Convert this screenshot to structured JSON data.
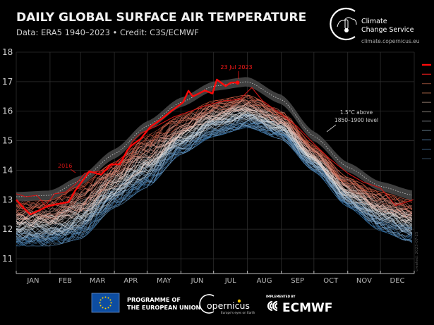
{
  "header": {
    "title": "DAILY GLOBAL SURFACE AIR TEMPERATURE",
    "subtitle": "Data: ERA5 1940–2023 • Credit: C3S/ECMWF"
  },
  "brand": {
    "line1": "Climate",
    "line2": "Change Service",
    "url": "climate.copernicus.eu"
  },
  "footer": {
    "eu_line1": "PROGRAMME OF",
    "eu_line2": "THE EUROPEAN UNION",
    "copernicus": "opernicus",
    "copernicus_tagline": "Europe's eyes on Earth",
    "implemented_by": "IMPLEMENTED BY",
    "ecmwf": "ECMWF"
  },
  "watermark": "created: 2023-07-25",
  "chart_data": {
    "type": "line",
    "title": "DAILY GLOBAL SURFACE AIR TEMPERATURE",
    "xlabel": "",
    "ylabel": "",
    "ylim": [
      11,
      18
    ],
    "yticks": [
      11,
      12,
      13,
      14,
      15,
      16,
      17,
      18
    ],
    "xticks": [
      "JAN",
      "FEB",
      "MAR",
      "APR",
      "MAY",
      "JUN",
      "JUL",
      "AUG",
      "SEP",
      "OCT",
      "NOV",
      "DEC"
    ],
    "grid": true,
    "legend": "right",
    "years_range": [
      1940,
      2023
    ],
    "colors": {
      "cold": "#2e6fa8",
      "neutral": "#e8e4e0",
      "warm": "#d9553a",
      "y2023": "#ff0a0a",
      "y2016": "#d01414",
      "band": "#4a4a4a",
      "threshold": "#bbbbbb"
    },
    "ensemble_envelope_1940_2022": {
      "dates": [
        "01-01",
        "02-01",
        "03-01",
        "04-01",
        "05-01",
        "06-01",
        "07-01",
        "08-01",
        "09-01",
        "10-01",
        "11-01",
        "12-01",
        "12-31"
      ],
      "min": [
        11.5,
        11.5,
        11.75,
        12.8,
        13.5,
        14.6,
        15.2,
        15.5,
        15.1,
        14.0,
        12.8,
        12.0,
        11.6
      ],
      "max": [
        12.9,
        12.9,
        13.4,
        14.2,
        15.1,
        15.8,
        16.3,
        16.5,
        16.0,
        14.8,
        13.7,
        13.2,
        12.9
      ]
    },
    "threshold_1_5": {
      "label_line1": "1.5°C above",
      "label_line2": "1850–1900 level",
      "dates": [
        "01-01",
        "02-01",
        "03-01",
        "04-01",
        "05-01",
        "06-01",
        "07-01",
        "08-01",
        "09-01",
        "10-01",
        "11-01",
        "12-01",
        "12-31"
      ],
      "values": [
        13.1,
        13.15,
        13.65,
        14.55,
        15.5,
        16.3,
        16.85,
        17.0,
        16.4,
        15.15,
        14.1,
        13.45,
        13.15
      ]
    },
    "series": [
      {
        "name": "2016",
        "dates": [
          "01-01",
          "01-10",
          "01-20",
          "01-28",
          "02-05",
          "02-15",
          "02-25",
          "03-05",
          "03-15",
          "03-25",
          "04-01",
          "04-10",
          "04-18",
          "04-25",
          "05-10",
          "05-25",
          "06-10",
          "06-25",
          "07-10",
          "07-25",
          "08-05",
          "08-15",
          "09-01",
          "09-15",
          "10-01",
          "10-15",
          "11-01",
          "11-15",
          "12-01",
          "12-15",
          "12-31"
        ],
        "values": [
          13.2,
          13.1,
          13.15,
          12.8,
          13.2,
          13.25,
          13.55,
          13.9,
          13.95,
          14.0,
          14.2,
          14.5,
          15.0,
          15.25,
          15.5,
          15.8,
          16.0,
          16.2,
          16.35,
          16.4,
          16.8,
          16.35,
          15.9,
          15.5,
          14.9,
          14.4,
          13.9,
          13.6,
          13.4,
          12.8,
          13.0
        ]
      },
      {
        "name": "2023",
        "dates": [
          "01-01",
          "01-07",
          "01-14",
          "01-21",
          "01-29",
          "02-07",
          "02-18",
          "02-24",
          "03-02",
          "03-09",
          "03-20",
          "03-29",
          "04-06",
          "04-13",
          "04-17",
          "04-25",
          "05-04",
          "05-15",
          "05-23",
          "06-03",
          "06-08",
          "06-12",
          "06-23",
          "06-30",
          "07-04",
          "07-12",
          "07-17",
          "07-23"
        ],
        "values": [
          13.0,
          12.75,
          12.5,
          12.62,
          12.77,
          12.85,
          12.92,
          13.3,
          13.6,
          13.96,
          13.85,
          14.2,
          14.2,
          14.68,
          14.85,
          15.06,
          15.47,
          15.76,
          16.0,
          16.3,
          16.69,
          16.5,
          16.7,
          16.6,
          17.07,
          16.85,
          16.97,
          16.97
        ],
        "annotation": "23 Jul 2023"
      }
    ],
    "annotations": {
      "y2016": "2016",
      "latest": "23 Jul 2023"
    },
    "legend_colors": [
      "#ff0a0a",
      "#c81818",
      "#6e3a2a",
      "#7a4a34",
      "#6b5a50",
      "#58544f",
      "#54585d",
      "#4a5a66",
      "#3a5a78",
      "#2c4a66",
      "#283a4c"
    ]
  }
}
